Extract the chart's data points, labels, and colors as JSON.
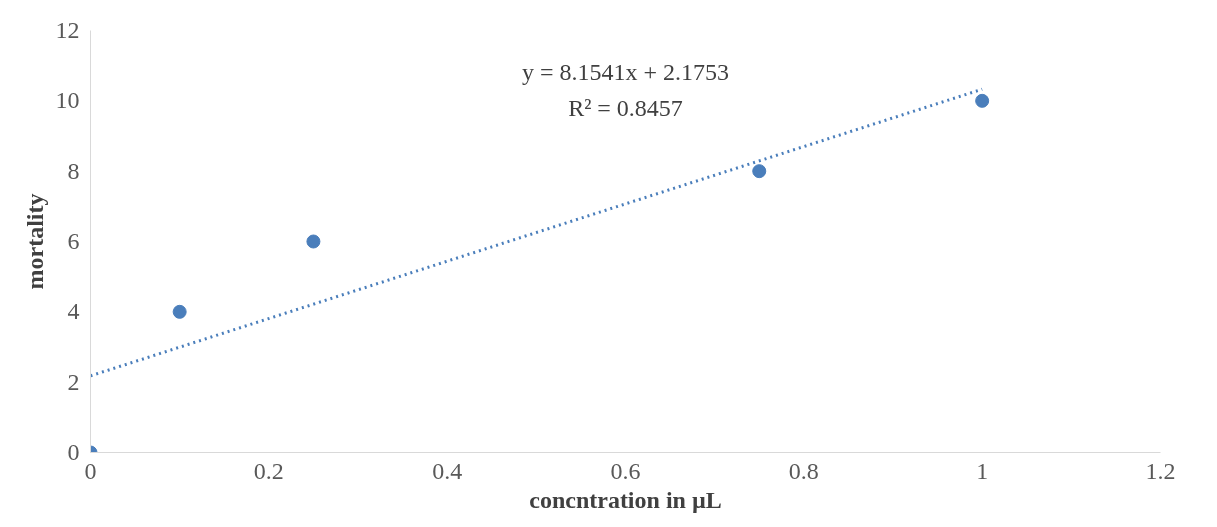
{
  "chart_data": {
    "type": "scatter",
    "xlabel": "concntration in µL",
    "ylabel": "mortality",
    "x": [
      0,
      0.1,
      0.25,
      0.75,
      1
    ],
    "series": [
      {
        "color": "#4a7ebb",
        "values": [
          0,
          4,
          6,
          8,
          10
        ],
        "marker": "circle"
      },
      {
        "type": "line",
        "color": "#4a7ebb",
        "x": [
          0,
          1
        ],
        "values": [
          2.18,
          10.33
        ],
        "line_style": "dotted"
      }
    ],
    "annotations": [
      "y = 8.1541x + 2.1753",
      "R² = 0.8457"
    ],
    "xlim": [
      0,
      1.2
    ],
    "xticks": [
      0,
      0.2,
      0.4,
      0.6,
      0.8,
      1,
      1.2
    ],
    "ylim": [
      0,
      12
    ],
    "yticks": [
      0,
      2,
      4,
      6,
      8,
      10,
      12
    ],
    "grid": false
  }
}
